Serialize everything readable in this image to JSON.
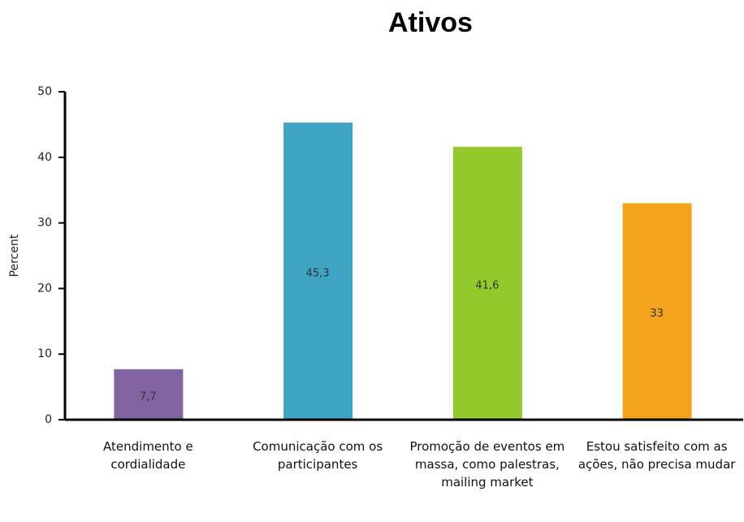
{
  "chart_data": {
    "type": "bar",
    "title": "Ativos",
    "y_label": "Percent",
    "categories": [
      "Atendimento e cordialidade",
      "Comunicação com os participantes",
      "Promoção de eventos em massa, como palestras, mailing market",
      "Estou satisfeito com as ações, não precisa mudar"
    ],
    "values": [
      7.7,
      45.3,
      41.6,
      33
    ],
    "value_labels": [
      "7,7",
      "45,3",
      "41,6",
      "33"
    ],
    "colors": [
      "#8064a2",
      "#3fa4c3",
      "#93c92b",
      "#f4a41c"
    ],
    "ylim": [
      0,
      50
    ],
    "yticks": [
      0,
      10,
      20,
      30,
      40,
      50
    ],
    "grid": false
  }
}
